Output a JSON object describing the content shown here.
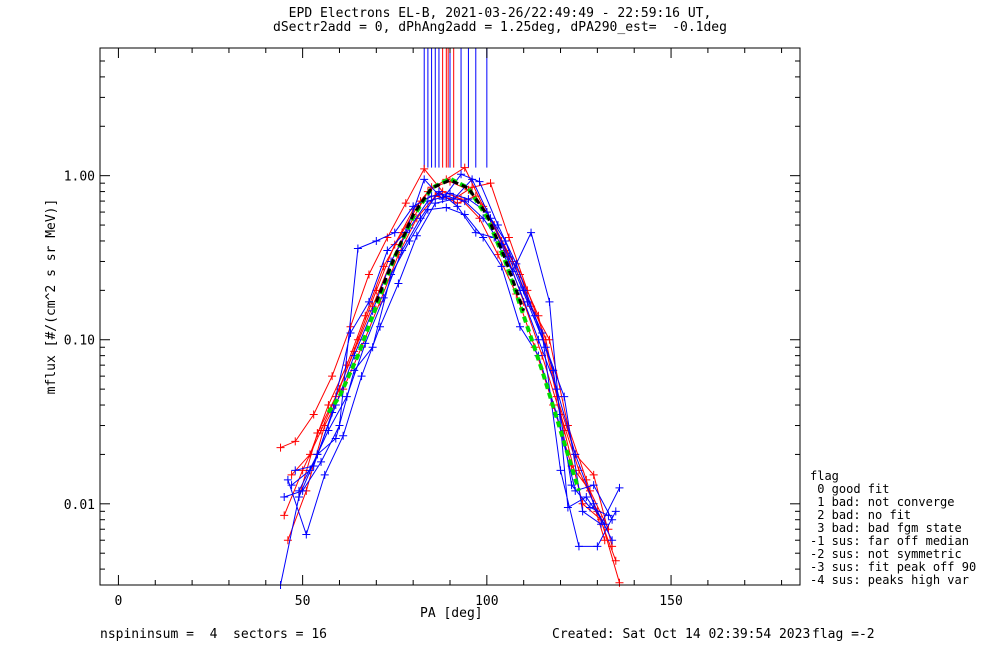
{
  "title_line1": "EPD Electrons EL-B, 2021-03-26/22:49:49 - 22:59:16 UT,",
  "title_line2": "dSectr2add = 0, dPhAng2add = 1.25deg, dPA290_est=  -0.1deg",
  "footer": {
    "left": "nspininsum =  4  sectors = 16",
    "created": "Created: Sat Oct 14 02:39:54 2023",
    "flag": "flag =-2"
  },
  "legend": {
    "title": "flag",
    "items": [
      " 0 good fit",
      " 1 bad: not converge",
      " 2 bad: no fit",
      " 3 bad: bad fgm state",
      "-1 sus: far off median",
      "-2 sus: not symmetric",
      "-3 sus: fit peak off 90",
      "-4 sus: peaks high var"
    ]
  },
  "chart_data": {
    "type": "line",
    "xlabel": "PA [deg]",
    "ylabel": "mflux [#/(cm^2 s sr MeV)]",
    "xlim": [
      -5,
      185
    ],
    "ylim": [
      0.0032,
      6.0
    ],
    "yscale": "log",
    "xticks": [
      0,
      50,
      100,
      150
    ],
    "xtick_labels": [
      "0",
      "50",
      "100",
      "150"
    ],
    "yticks": [
      0.01,
      0.1,
      1.0
    ],
    "ytick_labels": [
      "0.01",
      "0.10",
      "1.00"
    ],
    "colors": {
      "red": "#ff0000",
      "blue": "#0000ff",
      "green": "#00dd00",
      "black": "#000000"
    },
    "series": [
      {
        "color": "red",
        "x": [
          45,
          50,
          55,
          60,
          65,
          70,
          75,
          80,
          85,
          90,
          95,
          100,
          105,
          110,
          115,
          120,
          125,
          130,
          135
        ],
        "y": [
          0.0085,
          0.016,
          0.028,
          0.05,
          0.1,
          0.2,
          0.38,
          0.62,
          0.85,
          0.92,
          0.82,
          0.6,
          0.35,
          0.17,
          0.08,
          0.035,
          0.016,
          0.009,
          0.0045
        ]
      },
      {
        "color": "red",
        "x": [
          44,
          48,
          53,
          58,
          63,
          68,
          73,
          78,
          83,
          88,
          93,
          98,
          103,
          108,
          113,
          118,
          123,
          128,
          133
        ],
        "y": [
          0.022,
          0.024,
          0.035,
          0.06,
          0.12,
          0.25,
          0.42,
          0.68,
          1.1,
          0.8,
          0.72,
          0.55,
          0.33,
          0.19,
          0.09,
          0.04,
          0.017,
          0.012,
          0.007
        ]
      },
      {
        "color": "red",
        "x": [
          46,
          51,
          56,
          61,
          66,
          71,
          76,
          81,
          86,
          91,
          96,
          101,
          106,
          111,
          116,
          121,
          126,
          131,
          136
        ],
        "y": [
          0.006,
          0.012,
          0.03,
          0.05,
          0.09,
          0.17,
          0.33,
          0.55,
          0.75,
          0.72,
          0.85,
          0.9,
          0.42,
          0.2,
          0.1,
          0.028,
          0.01,
          0.008,
          0.0033
        ]
      },
      {
        "color": "red",
        "x": [
          47,
          52,
          57,
          62,
          67,
          72,
          77,
          82,
          87,
          92,
          97,
          102,
          107,
          112,
          117,
          122,
          127,
          132
        ],
        "y": [
          0.015,
          0.02,
          0.04,
          0.07,
          0.14,
          0.28,
          0.45,
          0.7,
          0.78,
          0.68,
          0.75,
          0.5,
          0.3,
          0.16,
          0.1,
          0.03,
          0.014,
          0.006
        ]
      },
      {
        "color": "red",
        "x": [
          49,
          54,
          59,
          64,
          69,
          74,
          79,
          84,
          89,
          94,
          99,
          104,
          109,
          114,
          119,
          124,
          129,
          134
        ],
        "y": [
          0.011,
          0.027,
          0.045,
          0.085,
          0.16,
          0.3,
          0.5,
          0.8,
          0.95,
          1.12,
          0.65,
          0.4,
          0.25,
          0.14,
          0.045,
          0.02,
          0.015,
          0.0055
        ]
      },
      {
        "color": "blue",
        "x": [
          44,
          49,
          54,
          59,
          64,
          69,
          74,
          79,
          84,
          89,
          94,
          99,
          104,
          109,
          114,
          119,
          124,
          129,
          134
        ],
        "y": [
          0.0032,
          0.011,
          0.02,
          0.04,
          0.08,
          0.15,
          0.3,
          0.48,
          0.7,
          0.75,
          0.7,
          0.55,
          0.38,
          0.2,
          0.1,
          0.05,
          0.02,
          0.01,
          0.006
        ]
      },
      {
        "color": "blue",
        "x": [
          45,
          50,
          55,
          60,
          65,
          70,
          75,
          80,
          85,
          90,
          95,
          100,
          105,
          110,
          115,
          120,
          125,
          130,
          135
        ],
        "y": [
          0.011,
          0.012,
          0.018,
          0.03,
          0.36,
          0.4,
          0.45,
          0.65,
          0.75,
          0.78,
          0.72,
          0.6,
          0.4,
          0.2,
          0.11,
          0.016,
          0.0055,
          0.0055,
          0.009
        ]
      },
      {
        "color": "blue",
        "x": [
          46,
          51,
          56,
          61,
          66,
          71,
          76,
          81,
          86,
          91,
          96,
          101,
          106,
          111,
          116,
          121,
          126,
          131,
          136
        ],
        "y": [
          0.014,
          0.0065,
          0.015,
          0.026,
          0.06,
          0.12,
          0.22,
          0.43,
          0.68,
          0.72,
          0.95,
          0.55,
          0.32,
          0.17,
          0.09,
          0.045,
          0.009,
          0.0075,
          0.0125
        ]
      },
      {
        "color": "blue",
        "x": [
          47,
          52,
          57,
          62,
          67,
          72,
          77,
          82,
          87,
          92,
          97,
          102,
          107,
          112,
          117,
          122,
          127,
          132
        ],
        "y": [
          0.013,
          0.016,
          0.028,
          0.045,
          0.095,
          0.18,
          0.35,
          0.55,
          0.8,
          0.65,
          0.45,
          0.42,
          0.26,
          0.45,
          0.17,
          0.0095,
          0.011,
          0.0075
        ]
      },
      {
        "color": "blue",
        "x": [
          48,
          53,
          58,
          63,
          68,
          73,
          78,
          83,
          88,
          93,
          98,
          103,
          108,
          113,
          118,
          123,
          128,
          133
        ],
        "y": [
          0.016,
          0.017,
          0.036,
          0.11,
          0.17,
          0.35,
          0.45,
          0.95,
          0.72,
          1.02,
          0.92,
          0.5,
          0.29,
          0.14,
          0.065,
          0.013,
          0.0095,
          0.0085
        ]
      },
      {
        "color": "blue",
        "x": [
          49,
          54,
          59,
          64,
          69,
          74,
          79,
          84,
          89,
          94,
          99,
          104,
          109,
          114,
          119,
          124,
          129,
          134
        ],
        "y": [
          0.012,
          0.02,
          0.025,
          0.065,
          0.09,
          0.25,
          0.4,
          0.62,
          0.64,
          0.58,
          0.42,
          0.28,
          0.12,
          0.08,
          0.035,
          0.012,
          0.013,
          0.008
        ]
      }
    ],
    "fit_curves": [
      {
        "color": "green",
        "style": "dashed",
        "x": [
          57,
          60,
          65,
          70,
          75,
          80,
          85,
          90,
          95,
          100,
          105,
          110,
          115,
          120,
          125
        ],
        "y": [
          0.036,
          0.045,
          0.08,
          0.16,
          0.32,
          0.56,
          0.84,
          0.96,
          0.84,
          0.56,
          0.3,
          0.14,
          0.065,
          0.028,
          0.012
        ]
      },
      {
        "color": "black",
        "style": "dashed",
        "x": [
          70,
          75,
          80,
          85,
          90,
          95,
          100,
          105,
          110
        ],
        "y": [
          0.17,
          0.32,
          0.58,
          0.84,
          0.94,
          0.84,
          0.58,
          0.31,
          0.15
        ]
      }
    ],
    "peak_lines": [
      {
        "color": "blue",
        "x": 83
      },
      {
        "color": "blue",
        "x": 84
      },
      {
        "color": "blue",
        "x": 85
      },
      {
        "color": "blue",
        "x": 86
      },
      {
        "color": "blue",
        "x": 87
      },
      {
        "color": "red",
        "x": 88
      },
      {
        "color": "red",
        "x": 89
      },
      {
        "color": "red",
        "x": 89.5
      },
      {
        "color": "blue",
        "x": 90
      },
      {
        "color": "red",
        "x": 91
      },
      {
        "color": "blue",
        "x": 93
      },
      {
        "color": "blue",
        "x": 95
      },
      {
        "color": "blue",
        "x": 97
      },
      {
        "color": "blue",
        "x": 100
      }
    ],
    "peak_line_ylow": 1.12
  }
}
